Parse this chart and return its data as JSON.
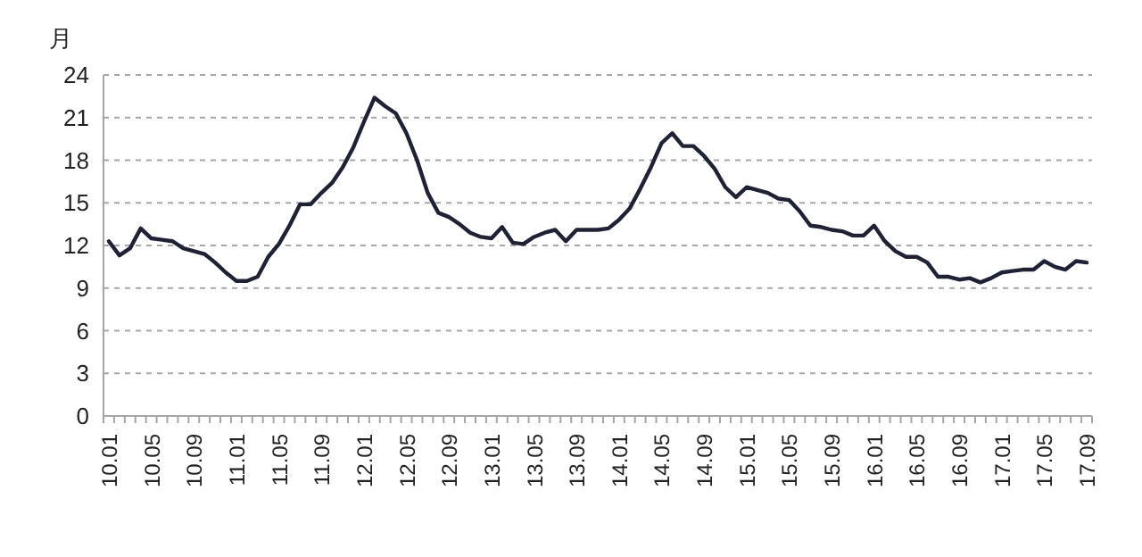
{
  "chart_data": {
    "type": "line",
    "ylabel": "月",
    "ylim": [
      0,
      24
    ],
    "yticks": [
      0,
      3,
      6,
      9,
      12,
      15,
      18,
      21,
      24
    ],
    "grid": "y",
    "categories": [
      "10.01",
      null,
      null,
      null,
      "10.05",
      null,
      null,
      null,
      "10.09",
      null,
      null,
      null,
      "11.01",
      null,
      null,
      null,
      "11.05",
      null,
      null,
      null,
      "11.09",
      null,
      null,
      null,
      "12.01",
      null,
      null,
      null,
      "12.05",
      null,
      null,
      null,
      "12.09",
      null,
      null,
      null,
      "13.01",
      null,
      null,
      null,
      "13.05",
      null,
      null,
      null,
      "13.09",
      null,
      null,
      null,
      "14.01",
      null,
      null,
      null,
      "14.05",
      null,
      null,
      null,
      "14.09",
      null,
      null,
      null,
      "15.01",
      null,
      null,
      null,
      "15.05",
      null,
      null,
      null,
      "15.09",
      null,
      null,
      null,
      "16.01",
      null,
      null,
      null,
      "16.05",
      null,
      null,
      null,
      "16.09",
      null,
      null,
      null,
      "17.01",
      null,
      null,
      null,
      "17.05",
      null,
      null,
      null,
      "17.09"
    ],
    "series": [
      {
        "color": "#1f2235",
        "values": [
          12.3,
          11.3,
          11.8,
          13.2,
          12.5,
          12.4,
          12.3,
          11.8,
          11.6,
          11.4,
          10.8,
          10.1,
          9.5,
          9.5,
          9.8,
          11.2,
          12.1,
          13.4,
          14.9,
          14.9,
          15.7,
          16.4,
          17.5,
          18.9,
          20.7,
          22.4,
          21.8,
          21.3,
          19.9,
          18.0,
          15.7,
          14.3,
          14.0,
          13.5,
          12.9,
          12.6,
          12.5,
          13.3,
          12.2,
          12.1,
          12.6,
          12.9,
          13.1,
          12.3,
          13.1,
          13.1,
          13.1,
          13.2,
          13.8,
          14.6,
          16.0,
          17.5,
          19.2,
          19.9,
          19.0,
          19.0,
          18.3,
          17.4,
          16.1,
          15.4,
          16.1,
          15.9,
          15.7,
          15.3,
          15.2,
          14.4,
          13.4,
          13.3,
          13.1,
          13.0,
          12.7,
          12.7,
          13.4,
          12.3,
          11.6,
          11.2,
          11.2,
          10.8,
          9.8,
          9.8,
          9.6,
          9.7,
          9.4,
          9.7,
          10.1,
          10.2,
          10.3,
          10.3,
          10.9,
          10.5,
          10.3,
          10.9,
          10.8
        ]
      }
    ]
  }
}
